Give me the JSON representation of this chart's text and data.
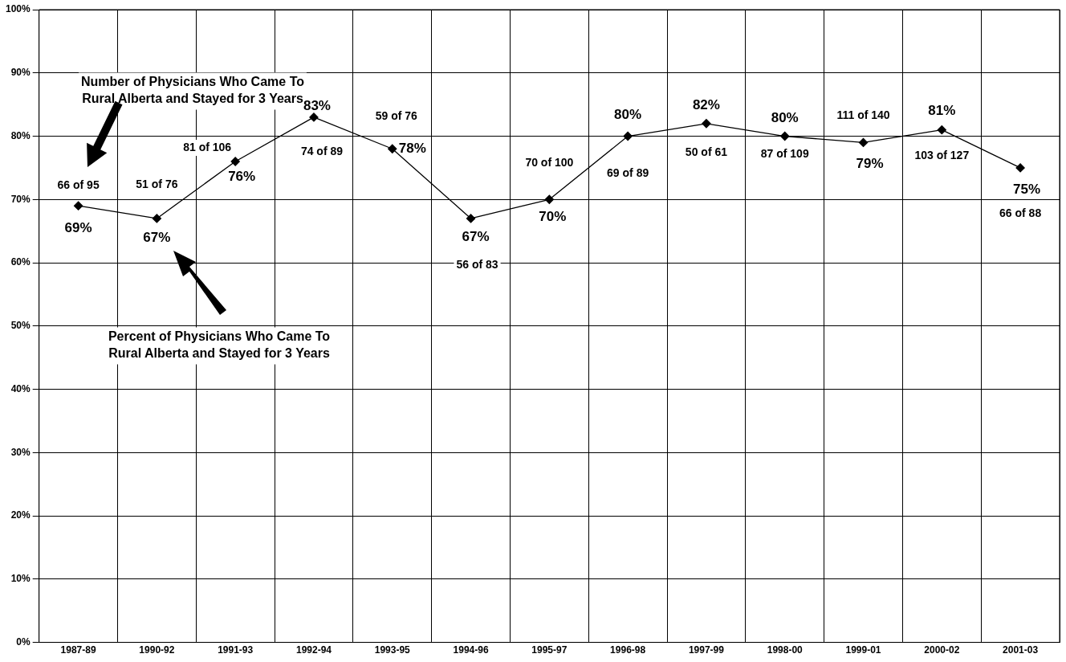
{
  "chart_data": {
    "type": "line",
    "categories": [
      "1987-89",
      "1990-92",
      "1991-93",
      "1992-94",
      "1993-95",
      "1994-96",
      "1995-97",
      "1996-98",
      "1997-99",
      "1998-00",
      "1999-01",
      "2000-02",
      "2001-03"
    ],
    "values": [
      69,
      67,
      76,
      83,
      78,
      67,
      70,
      80,
      82,
      80,
      79,
      81,
      75
    ],
    "value_labels": [
      "69%",
      "67%",
      "76%",
      "83%",
      "78%",
      "67%",
      "70%",
      "80%",
      "82%",
      "80%",
      "79%",
      "81%",
      "75%"
    ],
    "color": "#000000",
    "ylim": [
      0,
      100
    ],
    "yticks": [
      {
        "value": 0,
        "label": "0%"
      },
      {
        "value": 10,
        "label": "10%"
      },
      {
        "value": 20,
        "label": "20%"
      },
      {
        "value": 30,
        "label": "30%"
      },
      {
        "value": 40,
        "label": "40%"
      },
      {
        "value": 50,
        "label": "50%"
      },
      {
        "value": 60,
        "label": "60%"
      },
      {
        "value": 70,
        "label": "70%"
      },
      {
        "value": 80,
        "label": "80%"
      },
      {
        "value": 90,
        "label": "90%"
      },
      {
        "value": 100,
        "label": "100%"
      }
    ],
    "grid": true,
    "legend": false,
    "marker": "diamond",
    "line_style": "solid",
    "annotations": [
      "Number of Physicians Who Came To\nRural Alberta and Stayed for 3 Years",
      "Percent of Physicians Who Came To\nRural Alberta and Stayed for 3 Years",
      "66 of 95",
      "51 of 76",
      "81 of 106",
      "74 of 89",
      "59 of 76",
      "56 of 83",
      "70 of 100",
      "69 of 89",
      "50 of 61",
      "87 of 109",
      "111 of 140",
      "103 of 127",
      "66 of 88"
    ]
  }
}
